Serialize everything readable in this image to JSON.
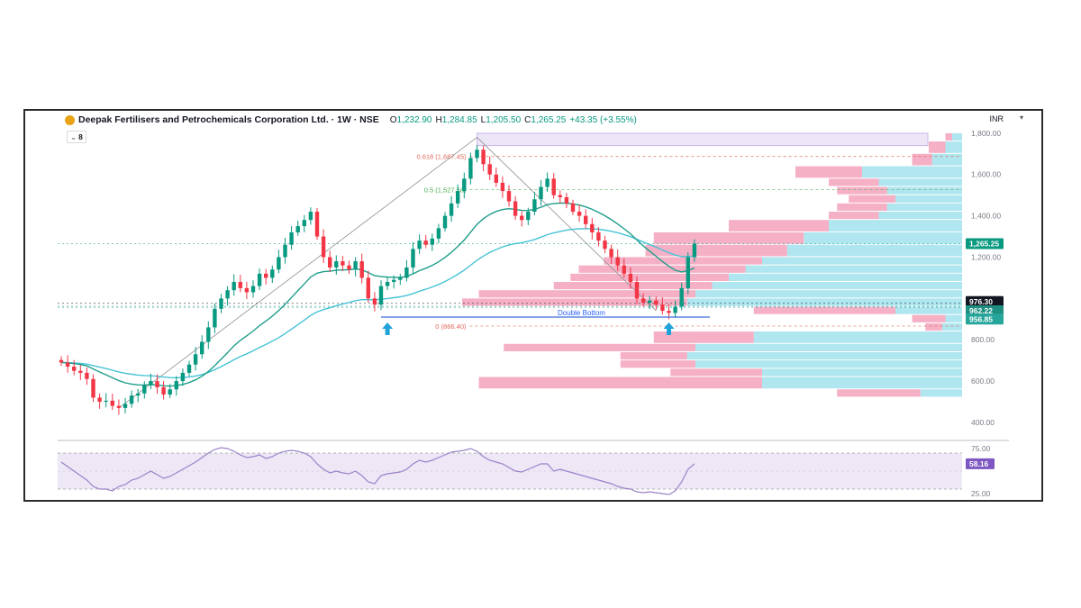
{
  "header": {
    "symbol_title": "Deepak Fertilisers and Petrochemicals Corporation Ltd. · 1W · NSE",
    "ohlc": {
      "o_label": "O",
      "o": "1,232.90",
      "h_label": "H",
      "h": "1,284.85",
      "l_label": "L",
      "l": "1,205.50",
      "c_label": "C",
      "c": "1,265.25",
      "change": "+43.35 (+3.55%)"
    },
    "currency": "INR",
    "indicator_count": "8"
  },
  "colors": {
    "up": "#089981",
    "down": "#f23645",
    "ema_fast": "#1e9e8a",
    "ema_slow": "#46c3d6",
    "vp_down": "#f4a7c0",
    "vp_up": "#a6e3ed",
    "rsi_line": "#9b82c9",
    "rsi_band": "#ede7f6",
    "rsi_badge": "#7e57c2",
    "fib_0618": "#e0685a",
    "fib_05": "#4caf50",
    "fib_0": "#e0685a",
    "pattern_label": "#2962ff",
    "arrow": "#1fa3d9"
  },
  "chart_data": [
    {
      "type": "candlestick",
      "interval": "1W",
      "yaxis": {
        "ticks": [
          400,
          600,
          800,
          1000,
          1200,
          1400,
          1600,
          1800
        ],
        "tick_labels": [
          "400.00",
          "600.00",
          "800.00",
          "1,000.00",
          "1,200.00",
          "1,400.00",
          "1,600.00",
          "1,800.00"
        ],
        "ylim": [
          330,
          1830
        ]
      },
      "grid": false,
      "price_labels": [
        {
          "value": 1265.25,
          "text": "1,265.25",
          "color": "#089981"
        },
        {
          "value": 976.3,
          "text": "976.30",
          "color": "#131722"
        },
        {
          "value": 962.22,
          "text": "962.22",
          "color": "#1e8f80"
        },
        {
          "value": 956.85,
          "text": "956.85",
          "color": "#26a69a"
        }
      ],
      "series": [
        {
          "key": "price",
          "closes": [
            690,
            670,
            650,
            640,
            610,
            520,
            500,
            505,
            480,
            470,
            490,
            530,
            540,
            580,
            600,
            570,
            535,
            560,
            600,
            640,
            680,
            730,
            790,
            860,
            950,
            1000,
            1040,
            1080,
            1050,
            1030,
            1060,
            1120,
            1100,
            1140,
            1200,
            1260,
            1320,
            1350,
            1380,
            1420,
            1300,
            1200,
            1150,
            1180,
            1160,
            1140,
            1180,
            1100,
            1000,
            970,
            1060,
            1080,
            1090,
            1100,
            1150,
            1240,
            1280,
            1260,
            1290,
            1340,
            1400,
            1460,
            1520,
            1580,
            1680,
            1720,
            1650,
            1600,
            1560,
            1520,
            1470,
            1400,
            1380,
            1420,
            1480,
            1540,
            1580,
            1500,
            1490,
            1460,
            1420,
            1400,
            1360,
            1320,
            1280,
            1240,
            1200,
            1160,
            1120,
            1080,
            1000,
            980,
            990,
            970,
            940,
            930,
            960,
            1050,
            1200,
            1265.25
          ],
          "opens": null
        },
        {
          "key": "ema_fast",
          "name": ""
        },
        {
          "key": "ema_slow",
          "name": ""
        }
      ],
      "fibonacci": [
        {
          "level": "0.618",
          "value": 1687.45,
          "text": "0.618 (1,687.45)"
        },
        {
          "level": "0.5",
          "value": 1527.58,
          "text": "0.5 (1,527.58)"
        },
        {
          "level": "0",
          "value": 866.4,
          "text": "0 (866.40)"
        }
      ],
      "annotations": [
        {
          "text": "Double Bottom",
          "value": 910
        }
      ],
      "volume_profile": {
        "bins": [
          {
            "low": 1760,
            "high": 1800,
            "up": 6,
            "down": 4
          },
          {
            "low": 1700,
            "high": 1760,
            "up": 10,
            "down": 10
          },
          {
            "low": 1640,
            "high": 1700,
            "up": 18,
            "down": 12
          },
          {
            "low": 1580,
            "high": 1640,
            "up": 60,
            "down": 40
          },
          {
            "low": 1540,
            "high": 1580,
            "up": 50,
            "down": 30
          },
          {
            "low": 1500,
            "high": 1540,
            "up": 45,
            "down": 30
          },
          {
            "low": 1460,
            "high": 1500,
            "up": 40,
            "down": 28
          },
          {
            "low": 1420,
            "high": 1460,
            "up": 45,
            "down": 30
          },
          {
            "low": 1380,
            "high": 1420,
            "up": 50,
            "down": 30
          },
          {
            "low": 1320,
            "high": 1380,
            "up": 80,
            "down": 60
          },
          {
            "low": 1260,
            "high": 1320,
            "up": 95,
            "down": 90
          },
          {
            "low": 1200,
            "high": 1260,
            "up": 105,
            "down": 85
          },
          {
            "low": 1160,
            "high": 1200,
            "up": 120,
            "down": 95
          },
          {
            "low": 1120,
            "high": 1160,
            "up": 130,
            "down": 100
          },
          {
            "low": 1080,
            "high": 1120,
            "up": 140,
            "down": 95
          },
          {
            "low": 1040,
            "high": 1080,
            "up": 150,
            "down": 95
          },
          {
            "low": 1000,
            "high": 1040,
            "up": 160,
            "down": 130
          },
          {
            "low": 960,
            "high": 1000,
            "up": 165,
            "down": 135
          },
          {
            "low": 920,
            "high": 960,
            "up": 40,
            "down": 85
          },
          {
            "low": 880,
            "high": 920,
            "up": 10,
            "down": 20
          },
          {
            "low": 840,
            "high": 880,
            "up": 12,
            "down": 10
          },
          {
            "low": 780,
            "high": 840,
            "up": 125,
            "down": 60
          },
          {
            "low": 740,
            "high": 780,
            "up": 160,
            "down": 115
          },
          {
            "low": 700,
            "high": 740,
            "up": 165,
            "down": 40
          },
          {
            "low": 660,
            "high": 700,
            "up": 160,
            "down": 45
          },
          {
            "low": 620,
            "high": 660,
            "up": 120,
            "down": 55
          },
          {
            "low": 560,
            "high": 620,
            "up": 120,
            "down": 170
          },
          {
            "low": 520,
            "high": 560,
            "up": 25,
            "down": 50
          }
        ]
      }
    },
    {
      "type": "line",
      "name": "",
      "yaxis": {
        "ticks": [
          25,
          50,
          75
        ],
        "tick_labels": [
          "25.00",
          "",
          "75.00"
        ],
        "ylim": [
          22,
          78
        ]
      },
      "bands": [
        30,
        70
      ],
      "current": {
        "value": 58.16,
        "text": "58.16"
      },
      "values": [
        60,
        55,
        50,
        45,
        40,
        33,
        30,
        30,
        28,
        33,
        35,
        40,
        42,
        46,
        50,
        46,
        42,
        44,
        48,
        52,
        56,
        60,
        65,
        70,
        74,
        76,
        75,
        72,
        68,
        65,
        66,
        68,
        64,
        66,
        70,
        72,
        73,
        72,
        70,
        66,
        58,
        52,
        48,
        50,
        48,
        47,
        50,
        45,
        38,
        36,
        45,
        47,
        48,
        49,
        52,
        58,
        62,
        60,
        62,
        65,
        68,
        71,
        72,
        73,
        75,
        72,
        66,
        62,
        60,
        58,
        54,
        50,
        49,
        52,
        55,
        58,
        58,
        50,
        52,
        50,
        48,
        46,
        44,
        42,
        40,
        38,
        36,
        33,
        31,
        30,
        27,
        26,
        27,
        26,
        25,
        24,
        28,
        38,
        52,
        58.16
      ]
    }
  ]
}
